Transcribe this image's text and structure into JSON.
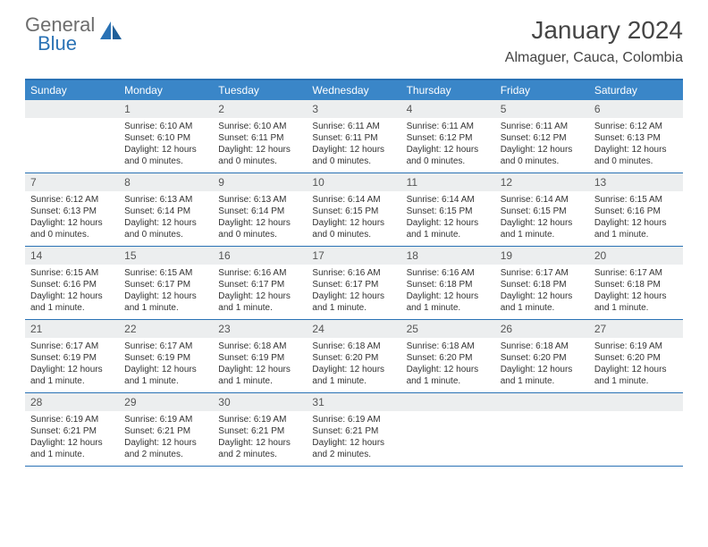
{
  "logo": {
    "general": "General",
    "blue": "Blue"
  },
  "title": "January 2024",
  "location": "Almaguer, Cauca, Colombia",
  "colors": {
    "header_bar": "#3a86c8",
    "border": "#2a72b5",
    "daynum_bg": "#eceeef",
    "text": "#333333",
    "logo_gray": "#6d6d6d",
    "logo_blue": "#2a72b5"
  },
  "weekdays": [
    "Sunday",
    "Monday",
    "Tuesday",
    "Wednesday",
    "Thursday",
    "Friday",
    "Saturday"
  ],
  "weeks": [
    [
      {
        "n": "",
        "sr": "",
        "ss": "",
        "dl": ""
      },
      {
        "n": "1",
        "sr": "Sunrise: 6:10 AM",
        "ss": "Sunset: 6:10 PM",
        "dl": "Daylight: 12 hours and 0 minutes."
      },
      {
        "n": "2",
        "sr": "Sunrise: 6:10 AM",
        "ss": "Sunset: 6:11 PM",
        "dl": "Daylight: 12 hours and 0 minutes."
      },
      {
        "n": "3",
        "sr": "Sunrise: 6:11 AM",
        "ss": "Sunset: 6:11 PM",
        "dl": "Daylight: 12 hours and 0 minutes."
      },
      {
        "n": "4",
        "sr": "Sunrise: 6:11 AM",
        "ss": "Sunset: 6:12 PM",
        "dl": "Daylight: 12 hours and 0 minutes."
      },
      {
        "n": "5",
        "sr": "Sunrise: 6:11 AM",
        "ss": "Sunset: 6:12 PM",
        "dl": "Daylight: 12 hours and 0 minutes."
      },
      {
        "n": "6",
        "sr": "Sunrise: 6:12 AM",
        "ss": "Sunset: 6:13 PM",
        "dl": "Daylight: 12 hours and 0 minutes."
      }
    ],
    [
      {
        "n": "7",
        "sr": "Sunrise: 6:12 AM",
        "ss": "Sunset: 6:13 PM",
        "dl": "Daylight: 12 hours and 0 minutes."
      },
      {
        "n": "8",
        "sr": "Sunrise: 6:13 AM",
        "ss": "Sunset: 6:14 PM",
        "dl": "Daylight: 12 hours and 0 minutes."
      },
      {
        "n": "9",
        "sr": "Sunrise: 6:13 AM",
        "ss": "Sunset: 6:14 PM",
        "dl": "Daylight: 12 hours and 0 minutes."
      },
      {
        "n": "10",
        "sr": "Sunrise: 6:14 AM",
        "ss": "Sunset: 6:15 PM",
        "dl": "Daylight: 12 hours and 0 minutes."
      },
      {
        "n": "11",
        "sr": "Sunrise: 6:14 AM",
        "ss": "Sunset: 6:15 PM",
        "dl": "Daylight: 12 hours and 1 minute."
      },
      {
        "n": "12",
        "sr": "Sunrise: 6:14 AM",
        "ss": "Sunset: 6:15 PM",
        "dl": "Daylight: 12 hours and 1 minute."
      },
      {
        "n": "13",
        "sr": "Sunrise: 6:15 AM",
        "ss": "Sunset: 6:16 PM",
        "dl": "Daylight: 12 hours and 1 minute."
      }
    ],
    [
      {
        "n": "14",
        "sr": "Sunrise: 6:15 AM",
        "ss": "Sunset: 6:16 PM",
        "dl": "Daylight: 12 hours and 1 minute."
      },
      {
        "n": "15",
        "sr": "Sunrise: 6:15 AM",
        "ss": "Sunset: 6:17 PM",
        "dl": "Daylight: 12 hours and 1 minute."
      },
      {
        "n": "16",
        "sr": "Sunrise: 6:16 AM",
        "ss": "Sunset: 6:17 PM",
        "dl": "Daylight: 12 hours and 1 minute."
      },
      {
        "n": "17",
        "sr": "Sunrise: 6:16 AM",
        "ss": "Sunset: 6:17 PM",
        "dl": "Daylight: 12 hours and 1 minute."
      },
      {
        "n": "18",
        "sr": "Sunrise: 6:16 AM",
        "ss": "Sunset: 6:18 PM",
        "dl": "Daylight: 12 hours and 1 minute."
      },
      {
        "n": "19",
        "sr": "Sunrise: 6:17 AM",
        "ss": "Sunset: 6:18 PM",
        "dl": "Daylight: 12 hours and 1 minute."
      },
      {
        "n": "20",
        "sr": "Sunrise: 6:17 AM",
        "ss": "Sunset: 6:18 PM",
        "dl": "Daylight: 12 hours and 1 minute."
      }
    ],
    [
      {
        "n": "21",
        "sr": "Sunrise: 6:17 AM",
        "ss": "Sunset: 6:19 PM",
        "dl": "Daylight: 12 hours and 1 minute."
      },
      {
        "n": "22",
        "sr": "Sunrise: 6:17 AM",
        "ss": "Sunset: 6:19 PM",
        "dl": "Daylight: 12 hours and 1 minute."
      },
      {
        "n": "23",
        "sr": "Sunrise: 6:18 AM",
        "ss": "Sunset: 6:19 PM",
        "dl": "Daylight: 12 hours and 1 minute."
      },
      {
        "n": "24",
        "sr": "Sunrise: 6:18 AM",
        "ss": "Sunset: 6:20 PM",
        "dl": "Daylight: 12 hours and 1 minute."
      },
      {
        "n": "25",
        "sr": "Sunrise: 6:18 AM",
        "ss": "Sunset: 6:20 PM",
        "dl": "Daylight: 12 hours and 1 minute."
      },
      {
        "n": "26",
        "sr": "Sunrise: 6:18 AM",
        "ss": "Sunset: 6:20 PM",
        "dl": "Daylight: 12 hours and 1 minute."
      },
      {
        "n": "27",
        "sr": "Sunrise: 6:19 AM",
        "ss": "Sunset: 6:20 PM",
        "dl": "Daylight: 12 hours and 1 minute."
      }
    ],
    [
      {
        "n": "28",
        "sr": "Sunrise: 6:19 AM",
        "ss": "Sunset: 6:21 PM",
        "dl": "Daylight: 12 hours and 1 minute."
      },
      {
        "n": "29",
        "sr": "Sunrise: 6:19 AM",
        "ss": "Sunset: 6:21 PM",
        "dl": "Daylight: 12 hours and 2 minutes."
      },
      {
        "n": "30",
        "sr": "Sunrise: 6:19 AM",
        "ss": "Sunset: 6:21 PM",
        "dl": "Daylight: 12 hours and 2 minutes."
      },
      {
        "n": "31",
        "sr": "Sunrise: 6:19 AM",
        "ss": "Sunset: 6:21 PM",
        "dl": "Daylight: 12 hours and 2 minutes."
      },
      {
        "n": "",
        "sr": "",
        "ss": "",
        "dl": ""
      },
      {
        "n": "",
        "sr": "",
        "ss": "",
        "dl": ""
      },
      {
        "n": "",
        "sr": "",
        "ss": "",
        "dl": ""
      }
    ]
  ]
}
